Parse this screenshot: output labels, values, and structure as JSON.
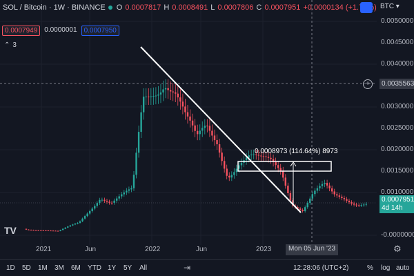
{
  "legend": {
    "title": "SOL / Bitcoin · 1W · BINANCE",
    "o_label": "O",
    "o_value": "0.0007817",
    "h_label": "H",
    "h_value": "0.0008491",
    "l_label": "L",
    "l_value": "0.0007806",
    "c_label": "C",
    "c_value": "0.0007951",
    "change": "+0.0000134 (+1.71%)"
  },
  "order": {
    "sell": "0.0007949",
    "spread": "0.0000001",
    "buy": "0.0007950"
  },
  "indicators": {
    "collapse_symbol": "⌃",
    "count": "3"
  },
  "currency_label": "BTC",
  "price_axis": {
    "ticks": [
      "0.0050000",
      "0.0045000",
      "0.0040000",
      "0.0035000",
      "0.0030000",
      "0.0025000",
      "0.0020000",
      "0.0015000",
      "0.0010000",
      "0.0005000",
      "-0.0000000"
    ],
    "crosshair_price": "0.0035563",
    "last_price": "0.0007951",
    "countdown": "4d 14h"
  },
  "time_axis": {
    "ticks": [
      "2021",
      "Jun",
      "2022",
      "Jun",
      "2023"
    ],
    "cursor": "Mon 05 Jun '23"
  },
  "measure": {
    "label": "0.0008973 (114.64%) 8973"
  },
  "toolbar": {
    "timeframes": [
      "1D",
      "5D",
      "1M",
      "3M",
      "6M",
      "YTD",
      "1Y",
      "5Y",
      "All"
    ],
    "clock": "12:28:06 (UTC+2)",
    "percent": "%",
    "log": "log",
    "auto": "auto"
  },
  "logo": "TV",
  "colors": {
    "up": "#26a69a",
    "down": "#f7525f",
    "accent": "#2962ff",
    "bg": "#131722"
  },
  "chart_data": {
    "type": "candlestick",
    "symbol": "SOL / Bitcoin",
    "interval": "1W",
    "exchange": "BINANCE",
    "ylim": [
      -3e-07,
      0.0051
    ],
    "x_range": [
      "2020-08",
      "2023-07"
    ],
    "approx_closes": [
      [
        "2020-10",
        0.00015
      ],
      [
        "2021-01",
        9e-05
      ],
      [
        "2021-03",
        0.0003
      ],
      [
        "2021-05",
        0.00095
      ],
      [
        "2021-06",
        0.00075
      ],
      [
        "2021-08",
        0.001
      ],
      [
        "2021-09",
        0.0032
      ],
      [
        "2021-10",
        0.0036
      ],
      [
        "2021-11",
        0.0039
      ],
      [
        "2021-12",
        0.0034
      ],
      [
        "2022-01",
        0.0026
      ],
      [
        "2022-02",
        0.0021
      ],
      [
        "2022-03",
        0.0025
      ],
      [
        "2022-04",
        0.0023
      ],
      [
        "2022-05",
        0.0015
      ],
      [
        "2022-06",
        0.0017
      ],
      [
        "2022-07",
        0.00175
      ],
      [
        "2022-08",
        0.00165
      ],
      [
        "2022-09",
        0.0017
      ],
      [
        "2022-10",
        0.0016
      ],
      [
        "2022-11",
        0.0008
      ],
      [
        "2022-12",
        0.0006
      ],
      [
        "2023-01",
        0.00095
      ],
      [
        "2023-02",
        0.0011
      ],
      [
        "2023-03",
        0.0009
      ],
      [
        "2023-04",
        0.00088
      ],
      [
        "2023-05",
        0.0008
      ],
      [
        "2023-06",
        0.00079
      ]
    ]
  }
}
